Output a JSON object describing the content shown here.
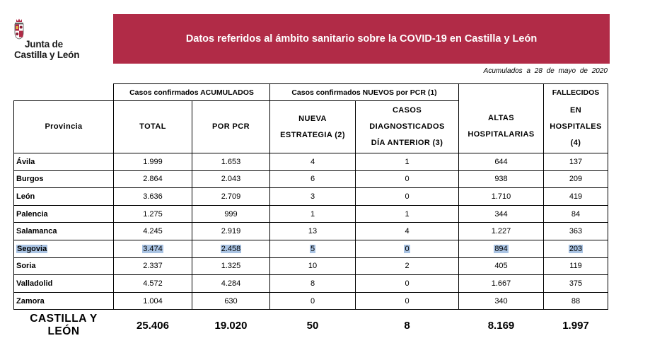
{
  "logo": {
    "line1": "Junta de",
    "line2": "Castilla y León"
  },
  "header": {
    "title": "Datos referidos al ámbito sanitario sobre la COVID-19 en Castilla y León"
  },
  "dateline": "Acumulados a 28 de mayo de 2020",
  "groups": {
    "acumulados": "Casos confirmados ACUMULADOS",
    "nuevos": "Casos confirmados NUEVOS por PCR (1)",
    "fallecidos_top": "FALLECIDOS"
  },
  "columns": {
    "provincia": "Provincia",
    "total": "TOTAL",
    "pcr": "POR PCR",
    "nueva_l1": "NUEVA",
    "nueva_l2": "ESTRATEGIA (2)",
    "casos_l1": "CASOS",
    "casos_l2": "DIAGNOSTICADOS",
    "casos_l3": "DÍA ANTERIOR (3)",
    "altas_l1": "ALTAS",
    "altas_l2": "HOSPITALARIAS",
    "fall_l2": "EN",
    "fall_l3": "HOSPITALES",
    "fall_l4": "(4)"
  },
  "rows": [
    {
      "provincia": "Ávila",
      "total": "1.999",
      "pcr": "1.653",
      "nueva": "4",
      "casos": "1",
      "altas": "644",
      "fallecidos": "137"
    },
    {
      "provincia": "Burgos",
      "total": "2.864",
      "pcr": "2.043",
      "nueva": "6",
      "casos": "0",
      "altas": "938",
      "fallecidos": "209"
    },
    {
      "provincia": "León",
      "total": "3.636",
      "pcr": "2.709",
      "nueva": "3",
      "casos": "0",
      "altas": "1.710",
      "fallecidos": "419"
    },
    {
      "provincia": "Palencia",
      "total": "1.275",
      "pcr": "999",
      "nueva": "1",
      "casos": "1",
      "altas": "344",
      "fallecidos": "84"
    },
    {
      "provincia": "Salamanca",
      "total": "4.245",
      "pcr": "2.919",
      "nueva": "13",
      "casos": "4",
      "altas": "1.227",
      "fallecidos": "363"
    },
    {
      "provincia": "Segovia",
      "total": "3.474",
      "pcr": "2.458",
      "nueva": "5",
      "casos": "0",
      "altas": "894",
      "fallecidos": "203"
    },
    {
      "provincia": "Soria",
      "total": "2.337",
      "pcr": "1.325",
      "nueva": "10",
      "casos": "2",
      "altas": "405",
      "fallecidos": "119"
    },
    {
      "provincia": "Valladolid",
      "total": "4.572",
      "pcr": "4.284",
      "nueva": "8",
      "casos": "0",
      "altas": "1.667",
      "fallecidos": "375"
    },
    {
      "provincia": "Zamora",
      "total": "1.004",
      "pcr": "630",
      "nueva": "0",
      "casos": "0",
      "altas": "340",
      "fallecidos": "88"
    }
  ],
  "totals": {
    "provincia": "CASTILLA Y LEÓN",
    "total": "25.406",
    "pcr": "19.020",
    "nueva": "50",
    "casos": "8",
    "altas": "8.169",
    "fallecidos": "1.997"
  },
  "colors": {
    "banner": "#b12b47",
    "highlight": "#a9c3e3"
  }
}
